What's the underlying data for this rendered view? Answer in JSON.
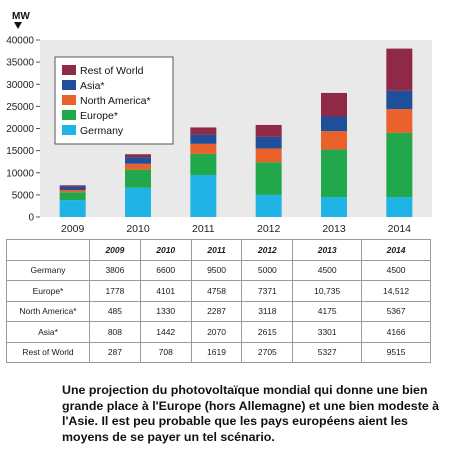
{
  "chart_data": {
    "type": "bar",
    "stacked": true,
    "unit_label": "MW",
    "categories": [
      "2009",
      "2010",
      "2011",
      "2012",
      "2013",
      "2014"
    ],
    "series": [
      {
        "name": "Germany",
        "color": "#1fb3e6",
        "values": [
          3806,
          6600,
          9500,
          5000,
          4500,
          4500
        ],
        "table_values": [
          "3806",
          "6600",
          "9500",
          "5000",
          "4500",
          "4500"
        ]
      },
      {
        "name": "Europe*",
        "color": "#20a84a",
        "values": [
          1778,
          4101,
          4758,
          7371,
          10735,
          14512
        ],
        "table_values": [
          "1778",
          "4101",
          "4758",
          "7371",
          "10,735",
          "14,512"
        ]
      },
      {
        "name": "North America*",
        "color": "#e9612b",
        "values": [
          485,
          1330,
          2287,
          3118,
          4175,
          5367
        ],
        "table_values": [
          "485",
          "1330",
          "2287",
          "3118",
          "4175",
          "5367"
        ]
      },
      {
        "name": "Asia*",
        "color": "#1f4f9a",
        "values": [
          808,
          1442,
          2070,
          2615,
          3301,
          4166
        ],
        "table_values": [
          "808",
          "1442",
          "2070",
          "2615",
          "3301",
          "4166"
        ]
      },
      {
        "name": "Rest of World",
        "color": "#8e2a45",
        "values": [
          287,
          708,
          1619,
          2705,
          5327,
          9515
        ],
        "table_values": [
          "287",
          "708",
          "1619",
          "2705",
          "5327",
          "9515"
        ]
      }
    ],
    "legend_order": [
      "Rest of World",
      "Asia*",
      "North America*",
      "Europe*",
      "Germany"
    ],
    "legend_position": "top-left",
    "y_ticks": [
      "0",
      "5000",
      "10000",
      "15000",
      "20000",
      "25000",
      "30000",
      "35000",
      "40000"
    ],
    "ylim": [
      0,
      40000
    ],
    "grid": false,
    "plot_background": "#e9e9e9"
  },
  "caption": "Une projection du photovoltaïque mondial qui donne une bien grande place à l'Europe (hors Allemagne) et une bien modeste à l'Asie. Il est peu probable que les pays européens aient les moyens de se payer un tel scénario."
}
